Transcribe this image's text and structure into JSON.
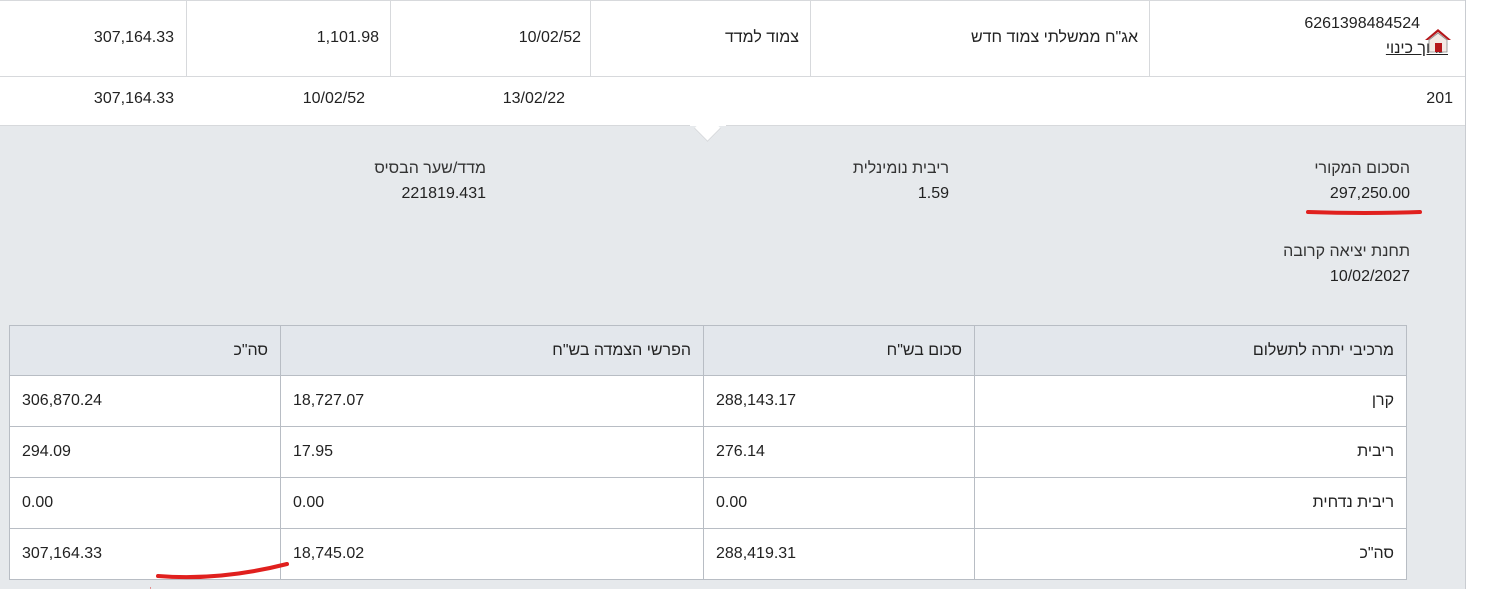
{
  "row1": {
    "account_number": "6261398484524",
    "edit_link": "ערוך כינוי",
    "bond_name": "אג\"ח ממשלתי צמוד חדש",
    "linkage": "צמוד למדד",
    "date": "10/02/52",
    "amount_a": "1,101.98",
    "amount_b": "307,164.33"
  },
  "row2": {
    "number": "201",
    "date_a": "13/02/22",
    "date_b": "10/02/52",
    "amount": "307,164.33"
  },
  "details": {
    "original_amount_label": "הסכום המקורי",
    "original_amount_value": "297,250.00",
    "nominal_interest_label": "ריבית נומינלית",
    "nominal_interest_value": "1.59",
    "base_index_label": "מדד/שער הבסיס",
    "base_index_value": "221819.431",
    "next_exit_label": "תחנת יציאה קרובה",
    "next_exit_value": "10/02/2027"
  },
  "components_table": {
    "headers": [
      "מרכיבי יתרה לתשלום",
      "סכום בש\"ח",
      "הפרשי הצמדה בש\"ח",
      "סה\"כ"
    ],
    "rows": [
      [
        "קרן",
        "288,143.17",
        "18,727.07",
        "306,870.24"
      ],
      [
        "ריבית",
        "276.14",
        "17.95",
        "294.09"
      ],
      [
        "ריבית נדחית",
        "0.00",
        "0.00",
        "0.00"
      ],
      [
        "סה\"כ",
        "288,419.31",
        "18,745.02",
        "307,164.33"
      ]
    ]
  },
  "colors": {
    "panel_bg": "#e6e9ec",
    "header_bg": "#e3e7ec",
    "annotation_red": "#e0201e",
    "home_icon_red": "#b5161a"
  },
  "icons": {
    "home": "home-icon"
  }
}
